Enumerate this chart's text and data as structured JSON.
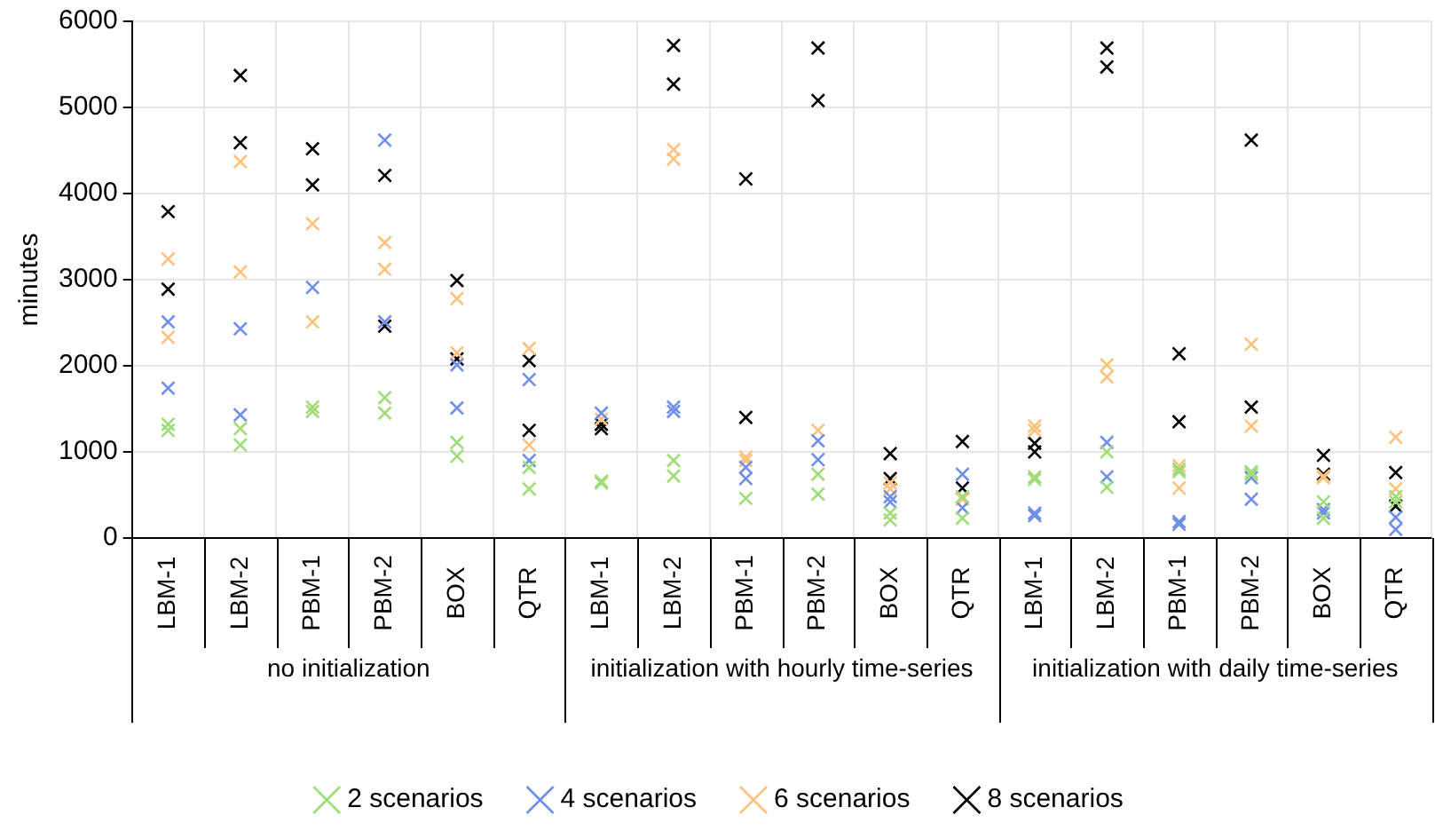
{
  "chart_data": {
    "type": "scatter",
    "ylabel": "minutes",
    "categories": [
      "LBM-1",
      "LBM-2",
      "PBM-1",
      "PBM-2",
      "BOX",
      "QTR",
      "LBM-1",
      "LBM-2",
      "PBM-1",
      "PBM-2",
      "BOX",
      "QTR",
      "LBM-1",
      "LBM-2",
      "PBM-1",
      "PBM-2",
      "BOX",
      "QTR"
    ],
    "annotations": [
      "no initialization",
      "initialization with hourly time-series",
      "initialization with daily time-series"
    ],
    "series": [
      {
        "name": "2 scenarios",
        "color": "#a0dc78",
        "values": [
          1320,
          1270,
          1520,
          1630,
          1110,
          820,
          660,
          900,
          460,
          740,
          290,
          480,
          710,
          1000,
          800,
          770,
          420,
          480
        ]
      },
      {
        "color": "#a0dc78",
        "values": [
          1250,
          1080,
          1470,
          1450,
          950,
          570,
          640,
          720,
          null,
          510,
          210,
          230,
          680,
          590,
          770,
          740,
          230,
          420
        ]
      },
      {
        "name": "4 scenarios",
        "color": "#7090e8",
        "values": [
          2510,
          2430,
          2910,
          4620,
          2010,
          1840,
          1450,
          1520,
          820,
          1130,
          480,
          740,
          290,
          1110,
          190,
          700,
          330,
          240
        ]
      },
      {
        "color": "#7090e8",
        "values": [
          1740,
          1430,
          null,
          2510,
          1510,
          900,
          null,
          1470,
          690,
          910,
          420,
          350,
          260,
          710,
          160,
          450,
          290,
          100
        ]
      },
      {
        "name": "6 scenarios",
        "color": "#ffc27d",
        "values": [
          3240,
          4370,
          3650,
          3430,
          2780,
          2200,
          1380,
          4510,
          940,
          1250,
          640,
          null,
          1300,
          2010,
          840,
          2250,
          720,
          1170
        ]
      },
      {
        "color": "#ffc27d",
        "values": [
          2330,
          3090,
          2510,
          3120,
          2150,
          1080,
          null,
          4400,
          900,
          null,
          570,
          450,
          1250,
          1870,
          580,
          1300,
          700,
          570
        ]
      },
      {
        "name": "8 scenarios",
        "color": "#000000",
        "values": [
          3790,
          5370,
          4520,
          4210,
          2990,
          2060,
          1320,
          5720,
          4170,
          5690,
          980,
          1120,
          1100,
          5690,
          2140,
          4620,
          960,
          760
        ]
      },
      {
        "color": "#000000",
        "values": [
          2890,
          4590,
          4100,
          2460,
          2080,
          1250,
          1270,
          5270,
          1400,
          5080,
          690,
          580,
          1000,
          5470,
          1350,
          1520,
          740,
          370
        ]
      }
    ],
    "ylim": [
      0,
      6000
    ],
    "yticks": [
      0,
      1000,
      2000,
      3000,
      4000,
      5000,
      6000
    ],
    "grid": true,
    "legend": "bottom",
    "marker": "cross"
  }
}
